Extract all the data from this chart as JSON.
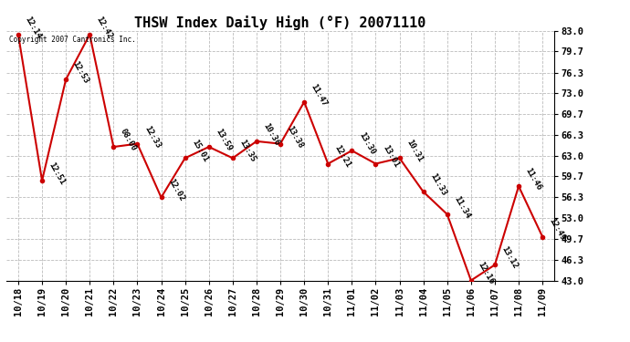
{
  "title": "THSW Index Daily High (°F) 20071110",
  "copyright_text": "Copyright 2007 Cantronics Inc.",
  "x_labels": [
    "10/18",
    "10/19",
    "10/20",
    "10/21",
    "10/22",
    "10/23",
    "10/24",
    "10/25",
    "10/26",
    "10/27",
    "10/28",
    "10/29",
    "10/30",
    "10/31",
    "11/01",
    "11/02",
    "11/03",
    "11/04",
    "11/05",
    "11/06",
    "11/07",
    "11/08",
    "11/09"
  ],
  "y_values": [
    82.4,
    59.0,
    75.2,
    82.4,
    64.4,
    64.9,
    56.3,
    62.6,
    64.4,
    62.6,
    65.3,
    64.9,
    71.6,
    61.7,
    63.8,
    61.7,
    62.6,
    57.2,
    53.6,
    43.0,
    45.5,
    58.1,
    50.0
  ],
  "point_labels": [
    "12:14",
    "12:51",
    "12:53",
    "12:42",
    "08:00",
    "12:33",
    "12:02",
    "15:01",
    "13:59",
    "13:35",
    "10:36",
    "13:38",
    "11:47",
    "12:21",
    "13:30",
    "13:01",
    "10:31",
    "11:33",
    "11:34",
    "12:16",
    "13:12",
    "11:46",
    "12:49"
  ],
  "y_ticks": [
    43.0,
    46.3,
    49.7,
    53.0,
    56.3,
    59.7,
    63.0,
    66.3,
    69.7,
    73.0,
    76.3,
    79.7,
    83.0
  ],
  "y_min": 43.0,
  "y_max": 83.0,
  "line_color": "#cc0000",
  "marker_color": "#cc0000",
  "bg_color": "#ffffff",
  "grid_color": "#bbbbbb",
  "title_fontsize": 11,
  "label_fontsize": 6.5,
  "tick_fontsize": 7.5
}
